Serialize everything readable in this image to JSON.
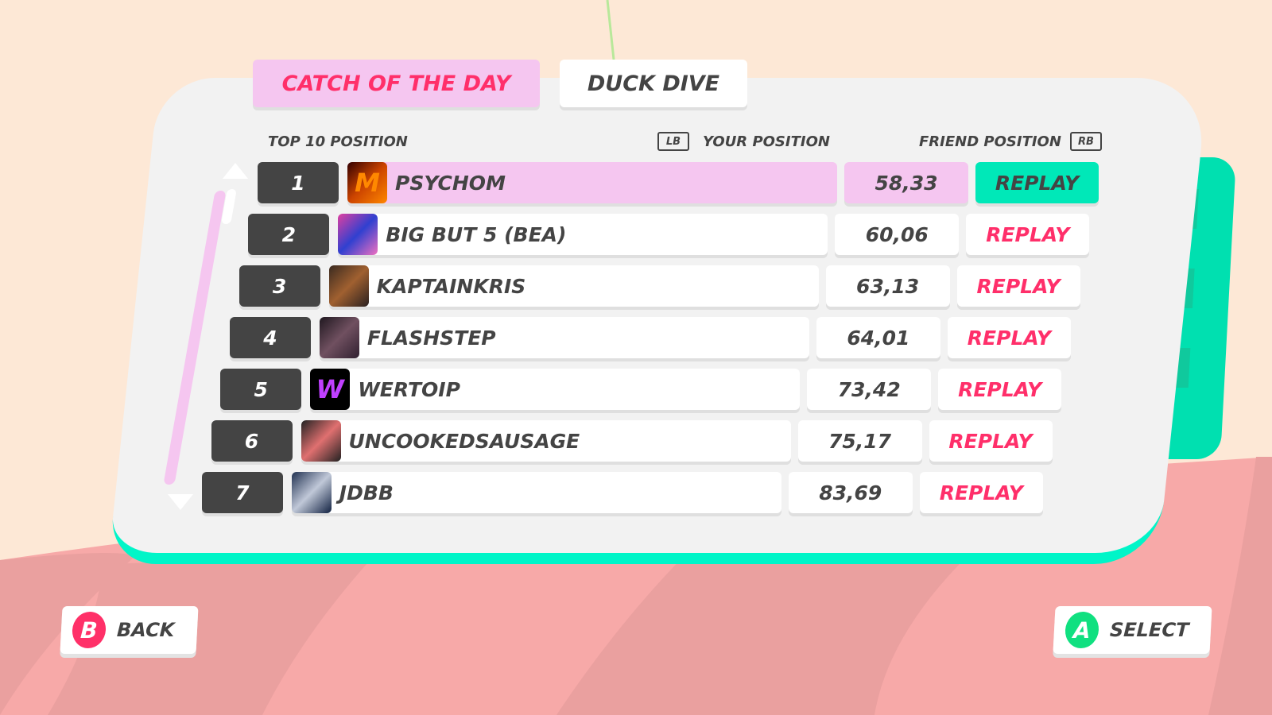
{
  "tabs": [
    {
      "label": "CATCH OF THE DAY",
      "active": true
    },
    {
      "label": "DUCK DIVE",
      "active": false
    }
  ],
  "headers": {
    "top10": "TOP 10 POSITION",
    "lb": "LB",
    "your_position": "YOUR POSITION",
    "friend_position": "FRIEND POSITION",
    "rb": "RB"
  },
  "rows": [
    {
      "rank": "1",
      "name": "PSYCHOM",
      "score": "58,33",
      "replay": "REPLAY",
      "avatar": "M",
      "selected": true
    },
    {
      "rank": "2",
      "name": "BIG BUT 5 (BEA)",
      "score": "60,06",
      "replay": "REPLAY"
    },
    {
      "rank": "3",
      "name": "KAPTAINKRIS",
      "score": "63,13",
      "replay": "REPLAY"
    },
    {
      "rank": "4",
      "name": "FLASHSTEP",
      "score": "64,01",
      "replay": "REPLAY"
    },
    {
      "rank": "5",
      "name": "WERTOIP",
      "score": "73,42",
      "replay": "REPLAY",
      "avatar": "W"
    },
    {
      "rank": "6",
      "name": "UNCOOKEDSAUSAGE",
      "score": "75,17",
      "replay": "REPLAY"
    },
    {
      "rank": "7",
      "name": "JDBB",
      "score": "83,69",
      "replay": "REPLAY"
    }
  ],
  "footer": {
    "back_key": "B",
    "back_label": "BACK",
    "select_key": "A",
    "select_label": "SELECT"
  },
  "colors": {
    "accent_pink": "#ff2f6a",
    "highlight": "#f5c6f0",
    "teal": "#00e8b8",
    "select_green": "#10e080"
  }
}
